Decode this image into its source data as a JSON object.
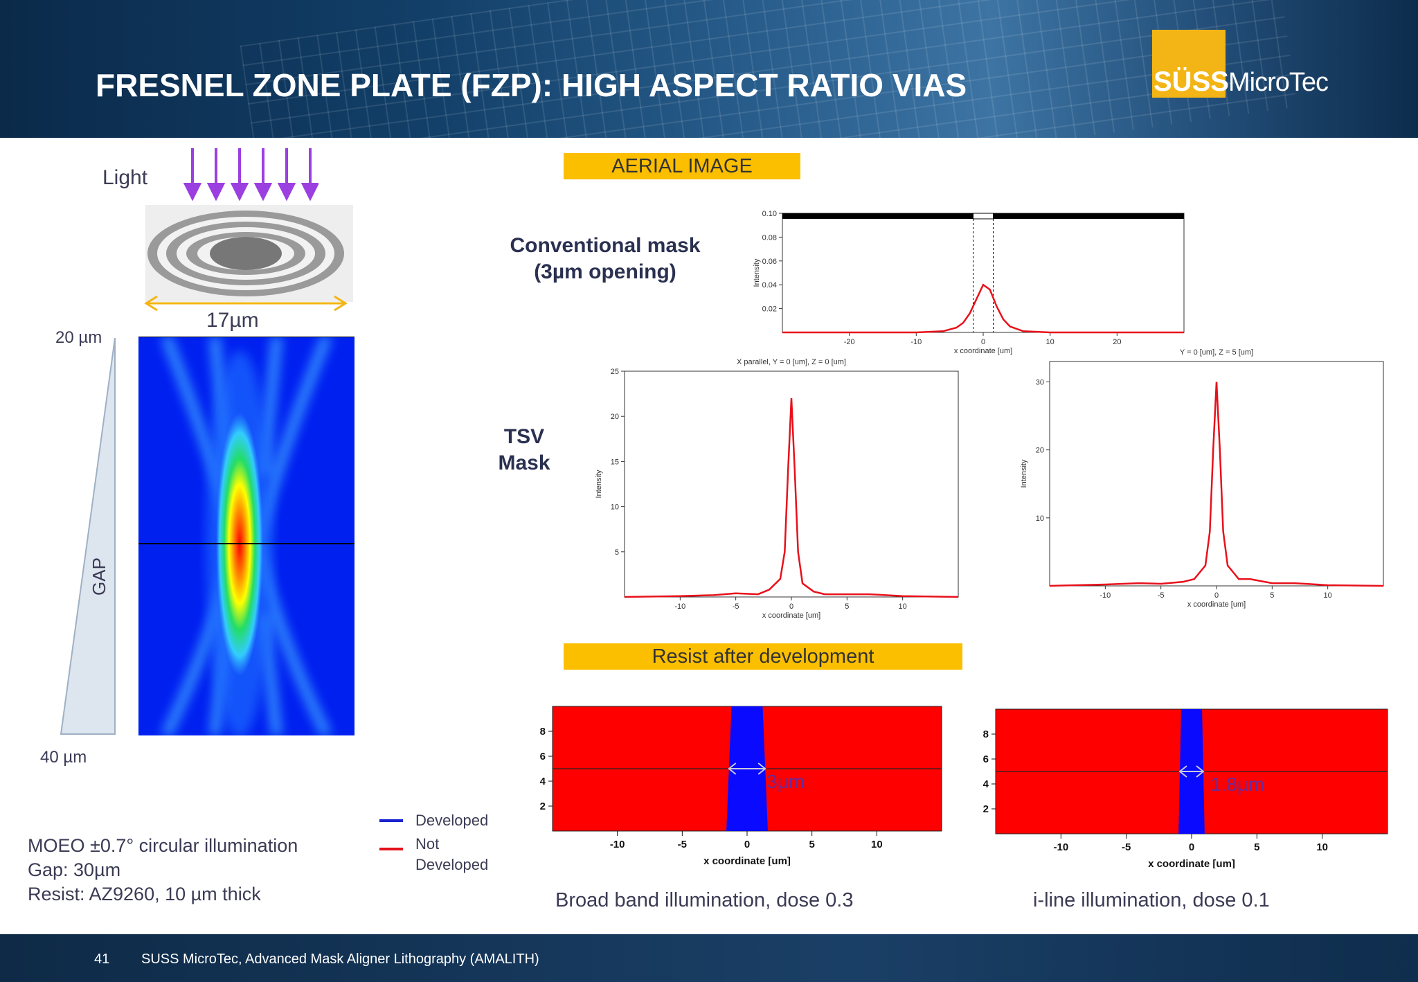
{
  "header": {
    "title": "FRESNEL ZONE PLATE (FZP): HIGH ASPECT RATIO VIAS",
    "logo_left": "SÜSS",
    "logo_right": "MicroTec"
  },
  "left": {
    "light_label": "Light",
    "width_label": "17µm",
    "gap_top": "20 µm",
    "gap_bottom": "40 µm",
    "gap_label": "GAP",
    "notes": [
      "MOEO ±0.7° circular illumination",
      "Gap: 30µm",
      "Resist: AZ9260, 10 µm thick"
    ]
  },
  "legend": {
    "developed": "Developed",
    "not_developed_1": "Not",
    "not_developed_2": "Developed"
  },
  "aerial": {
    "title": "AERIAL IMAGE",
    "conventional_1": "Conventional mask",
    "conventional_2": "(3µm opening)",
    "tsv_1": "TSV",
    "tsv_2": "Mask",
    "colors": {
      "curve": "#e8101a",
      "box": "#fcbf00"
    }
  },
  "resist": {
    "title": "Resist after development",
    "caption_left": "Broad band illumination, dose 0.3",
    "caption_right": "i-line illumination, dose 0.1",
    "colors": {
      "developed": "#0a0aff",
      "not_developed": "#ff0000"
    }
  },
  "chart_data": [
    {
      "type": "line",
      "name": "conventional",
      "title": "",
      "xlabel": "x coordinate [um]",
      "ylabel": "Intensity",
      "xlim": [
        -30,
        30
      ],
      "ylim": [
        0,
        0.1
      ],
      "xticks": [
        "-20",
        "-10",
        "0",
        "10",
        "20"
      ],
      "yticks": [
        "0.02",
        "0.04",
        "0.06",
        "0.08",
        "0.10"
      ],
      "x": [
        -30,
        -10,
        -6,
        -4,
        -3,
        -2,
        -1,
        0,
        1,
        2,
        3,
        4,
        6,
        10,
        30
      ],
      "y": [
        0,
        0,
        0.001,
        0.004,
        0.008,
        0.016,
        0.028,
        0.04,
        0.036,
        0.022,
        0.011,
        0.005,
        0.001,
        0,
        0
      ]
    },
    {
      "type": "line",
      "name": "tsv_left",
      "title": "X parallel, Y = 0 [um], Z = 0 [um]",
      "xlabel": "x coordinate [um]",
      "ylabel": "Intensity",
      "xlim": [
        -15,
        15
      ],
      "ylim": [
        0,
        25
      ],
      "xticks": [
        "-10",
        "-5",
        "0",
        "5",
        "10"
      ],
      "yticks": [
        "5",
        "10",
        "15",
        "20",
        "25"
      ],
      "x": [
        -15,
        -10,
        -7,
        -5,
        -3,
        -2,
        -1,
        -0.6,
        -0.3,
        0,
        0.3,
        0.6,
        1,
        2,
        3,
        5,
        7,
        10,
        15
      ],
      "y": [
        0,
        0.1,
        0.2,
        0.4,
        0.3,
        0.8,
        2,
        5,
        14,
        22,
        14,
        5,
        1.5,
        0.6,
        0.3,
        0.3,
        0.3,
        0.1,
        0
      ]
    },
    {
      "type": "line",
      "name": "tsv_right",
      "title": "Y = 0 [um], Z = 5 [um]",
      "xlabel": "x coordinate [um]",
      "ylabel": "Intensity",
      "xlim": [
        -15,
        15
      ],
      "ylim": [
        0,
        33
      ],
      "xticks": [
        "-10",
        "-5",
        "0",
        "5",
        "10"
      ],
      "yticks": [
        "10",
        "20",
        "30"
      ],
      "x": [
        -15,
        -10,
        -7,
        -5,
        -3,
        -2,
        -1,
        -0.6,
        -0.3,
        0,
        0.3,
        0.6,
        1,
        2,
        3,
        5,
        7,
        10,
        15
      ],
      "y": [
        0,
        0.2,
        0.4,
        0.3,
        0.6,
        1,
        3,
        8,
        20,
        30,
        20,
        8,
        3,
        1,
        1,
        0.4,
        0.4,
        0.1,
        0
      ]
    },
    {
      "type": "area",
      "name": "resist_broadband",
      "xlabel": "x coordinate [um]",
      "xlim": [
        -15,
        15
      ],
      "ylim": [
        0,
        10
      ],
      "xticks": [
        "-10",
        "-5",
        "0",
        "5",
        "10"
      ],
      "yticks": [
        "2",
        "4",
        "6",
        "8"
      ],
      "opening_label": "3µm",
      "opening_top": [
        -1.2,
        1.2
      ],
      "opening_bottom": [
        -1.6,
        1.6
      ],
      "line_y": 5
    },
    {
      "type": "area",
      "name": "resist_iline",
      "xlabel": "x coordinate [um]",
      "xlim": [
        -15,
        15
      ],
      "ylim": [
        0,
        10
      ],
      "xticks": [
        "-10",
        "-5",
        "0",
        "5",
        "10"
      ],
      "yticks": [
        "2",
        "4",
        "6",
        "8"
      ],
      "opening_label": "1.8µm",
      "opening_top": [
        -0.8,
        0.8
      ],
      "opening_bottom": [
        -1.0,
        1.0
      ],
      "line_y": 5
    }
  ]
}
